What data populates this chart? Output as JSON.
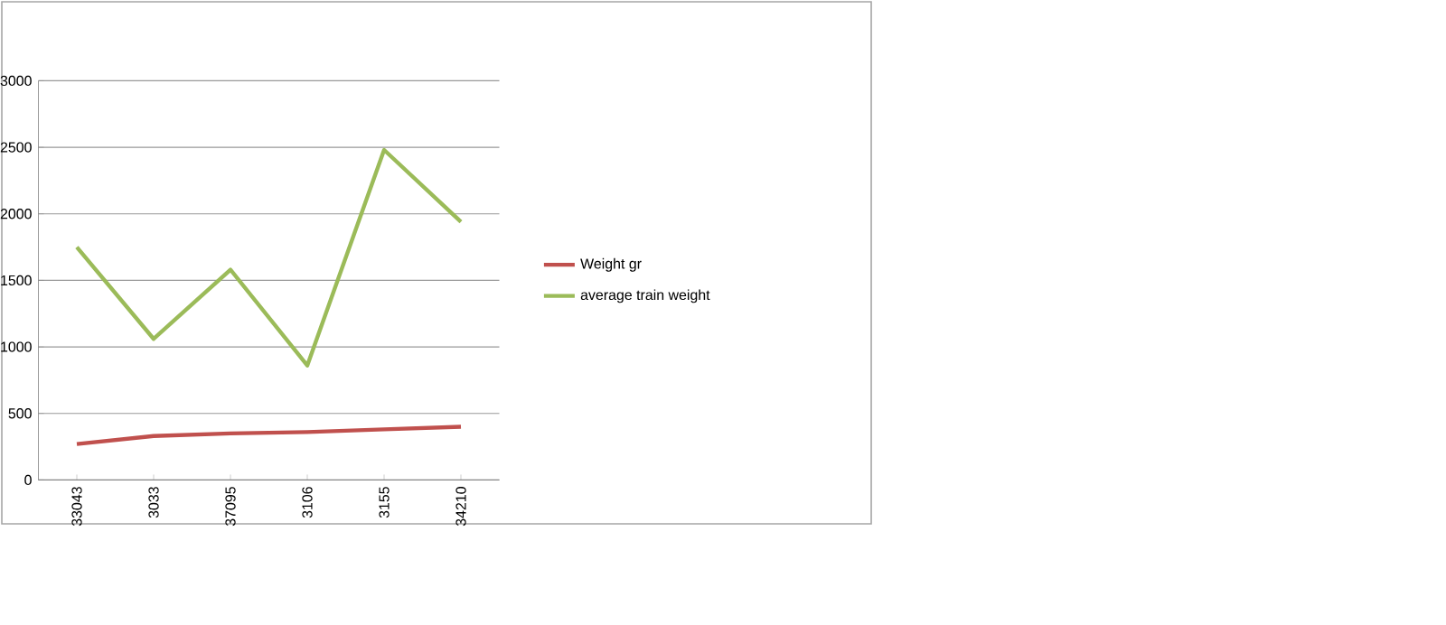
{
  "chart_data": {
    "type": "line",
    "categories": [
      "33043",
      "3033",
      "37095",
      "3106",
      "3155",
      "34210"
    ],
    "series": [
      {
        "name": "Weight  gr",
        "color": "#c0504d",
        "values": [
          270,
          330,
          350,
          360,
          380,
          400
        ]
      },
      {
        "name": "average train weight",
        "color": "#9bbb59",
        "values": [
          1750,
          1060,
          1580,
          860,
          2480,
          1940
        ]
      }
    ],
    "ylim": [
      0,
      3000
    ],
    "yticks": [
      0,
      500,
      1000,
      1500,
      2000,
      2500,
      3000
    ],
    "grid": "y",
    "legend": "right",
    "marker": "none",
    "line_style": "solid"
  }
}
